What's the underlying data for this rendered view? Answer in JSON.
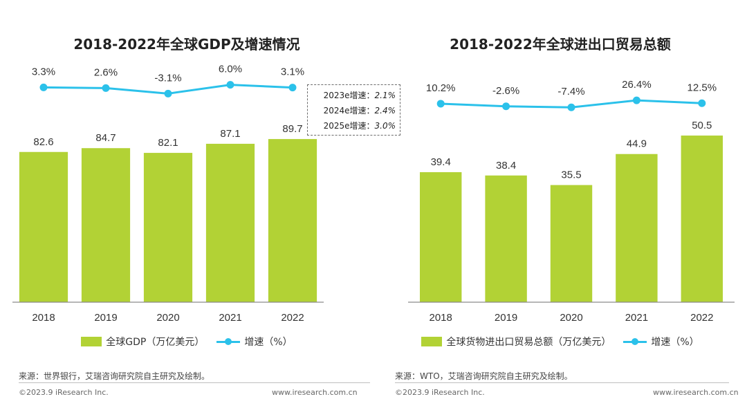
{
  "chart_data": [
    {
      "type": "bar",
      "title": "2018-2022年全球GDP及增速情况",
      "categories": [
        "2018",
        "2019",
        "2020",
        "2021",
        "2022"
      ],
      "series": [
        {
          "name": "全球GDP（万亿美元）",
          "type": "bar",
          "color": "#b2d235",
          "values": [
            82.6,
            84.7,
            82.1,
            87.1,
            89.7
          ]
        },
        {
          "name": "增速（%）",
          "type": "line",
          "color": "#2bc1ea",
          "values": [
            3.3,
            2.6,
            -3.1,
            6.0,
            3.1
          ],
          "labels": [
            "3.3%",
            "2.6%",
            "-3.1%",
            "6.0%",
            "3.1%"
          ]
        }
      ],
      "bar_ylim": [
        0,
        100
      ],
      "line_ylim": [
        -20,
        20
      ],
      "annotations": [
        {
          "label": "2023e增速：",
          "value": "2.1%"
        },
        {
          "label": "2024e增速：",
          "value": "2.4%"
        },
        {
          "label": "2025e增速：",
          "value": "3.0%"
        }
      ]
    },
    {
      "type": "bar",
      "title": "2018-2022年全球进出口贸易总额",
      "categories": [
        "2018",
        "2019",
        "2020",
        "2021",
        "2022"
      ],
      "series": [
        {
          "name": "全球货物进出口贸易总额（万亿美元）",
          "type": "bar",
          "color": "#b2d235",
          "values": [
            39.4,
            38.4,
            35.5,
            44.9,
            50.5
          ]
        },
        {
          "name": "增速（%）",
          "type": "line",
          "color": "#2bc1ea",
          "values": [
            10.2,
            -2.6,
            -7.4,
            26.4,
            12.5
          ],
          "labels": [
            "10.2%",
            "-2.6%",
            "-7.4%",
            "26.4%",
            "12.5%"
          ]
        }
      ],
      "bar_ylim": [
        0,
        57
      ],
      "line_ylim": [
        -80,
        80
      ]
    }
  ],
  "sources": {
    "left": "来源：世界银行，艾瑞咨询研究院自主研究及绘制。",
    "right": "来源：WTO，艾瑞咨询研究院自主研究及绘制。"
  },
  "footer": {
    "copyright": "©2023.9 iResearch Inc.",
    "website": "www.iresearch.com.cn"
  }
}
